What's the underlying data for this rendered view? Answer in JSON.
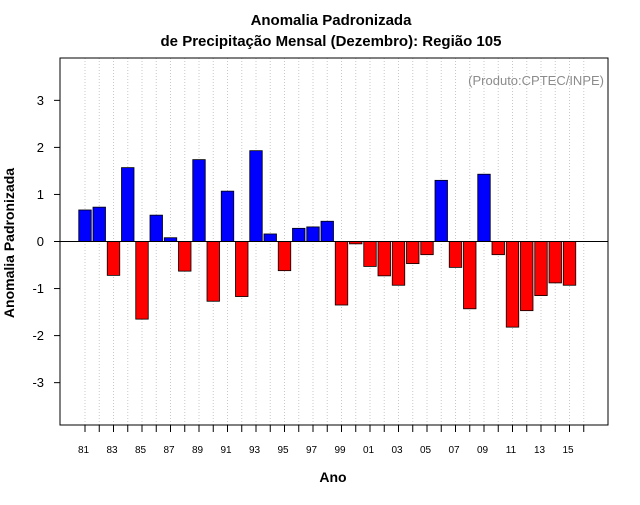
{
  "chart_data": {
    "type": "bar",
    "title": [
      "Anomalia Padronizada",
      "de Precipitação Mensal (Dezembro): Região 105"
    ],
    "xlabel": "Ano",
    "ylabel": "Anomalia Padronizada",
    "annotation": "(Produto:CPTEC/INPE)",
    "ylim": [
      -3.9,
      3.9
    ],
    "y_ticks": [
      -3,
      -2,
      -1,
      0,
      1,
      2,
      3
    ],
    "grid": "vertical dotted",
    "positive_color": "#0000ff",
    "negative_color": "#ff0000",
    "x_tick_labels": [
      "81",
      "83",
      "85",
      "87",
      "89",
      "91",
      "93",
      "95",
      "97",
      "99",
      "01",
      "03",
      "05",
      "07",
      "09",
      "11",
      "13",
      "15"
    ],
    "categories": [
      "1981",
      "1982",
      "1983",
      "1984",
      "1985",
      "1986",
      "1987",
      "1988",
      "1989",
      "1990",
      "1991",
      "1992",
      "1993",
      "1994",
      "1995",
      "1996",
      "1997",
      "1998",
      "1999",
      "2000",
      "2001",
      "2002",
      "2003",
      "2004",
      "2005",
      "2006",
      "2007",
      "2008",
      "2009",
      "2010",
      "2011",
      "2012",
      "2013",
      "2014",
      "2015"
    ],
    "values": [
      0.67,
      0.73,
      -0.72,
      1.57,
      -1.65,
      0.56,
      0.08,
      -0.63,
      1.74,
      -1.27,
      1.07,
      -1.17,
      1.93,
      0.16,
      -0.62,
      0.28,
      0.31,
      0.43,
      -1.35,
      -0.05,
      -0.53,
      -0.73,
      -0.93,
      -0.47,
      -0.28,
      1.3,
      -0.55,
      -1.43,
      1.43,
      -0.28,
      -1.82,
      -1.47,
      -1.15,
      -0.88,
      -0.93
    ]
  }
}
